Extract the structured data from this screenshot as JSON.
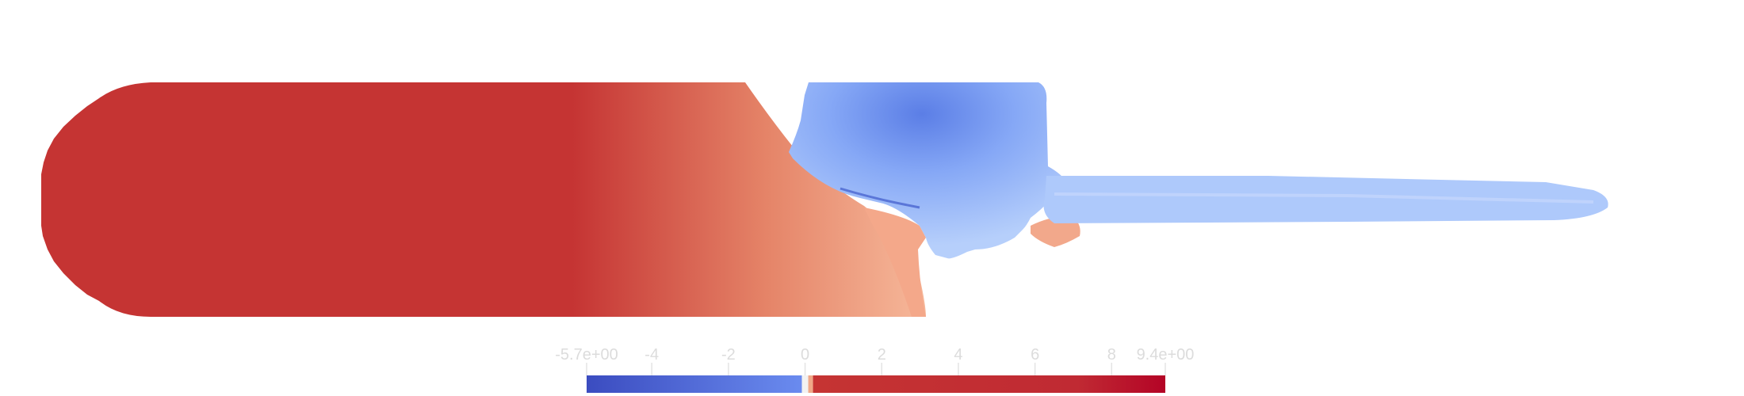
{
  "scalar_bar": {
    "range": [
      -5.7,
      9.4
    ],
    "ticks": [
      {
        "label": "-5.7e+00",
        "value": -5.7
      },
      {
        "label": "-4",
        "value": -4
      },
      {
        "label": "-2",
        "value": -2
      },
      {
        "label": "0",
        "value": 0
      },
      {
        "label": "2",
        "value": 2
      },
      {
        "label": "4",
        "value": 4
      },
      {
        "label": "6",
        "value": 6
      },
      {
        "label": "8",
        "value": 8
      },
      {
        "label": "9.4e+00",
        "value": 9.4
      }
    ],
    "colors": {
      "min": "#3b4cc0",
      "neutral": "#f2f2f2",
      "max": "#b40426"
    }
  },
  "field_colors": {
    "high": "#c53433",
    "salmon": "#f4a88a",
    "light_blue": "#aec9fb",
    "mid_blue": "#6f91f0"
  }
}
